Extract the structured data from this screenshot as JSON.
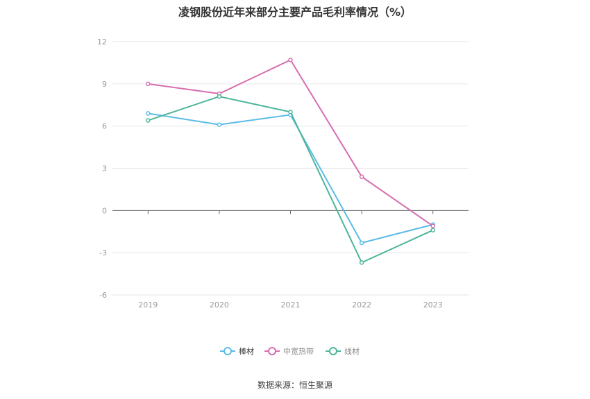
{
  "chart_data": {
    "type": "line",
    "title": "凌钢股份近年来部分主要产品毛利率情况（%）",
    "categories": [
      "2019",
      "2020",
      "2021",
      "2022",
      "2023"
    ],
    "ylim": [
      -6,
      12
    ],
    "yticks": [
      "12",
      "9",
      "6",
      "3",
      "0",
      "-3",
      "-6"
    ],
    "grid": true,
    "legend_position": "bottom",
    "series": [
      {
        "name": "棒材",
        "color": "#5bbbe8",
        "values": [
          6.9,
          6.1,
          6.8,
          -2.3,
          -1.0
        ]
      },
      {
        "name": "中宽热带",
        "color": "#d66db0",
        "values": [
          9.0,
          8.3,
          10.7,
          2.4,
          -1.1
        ]
      },
      {
        "name": "线材",
        "color": "#4cb59a",
        "values": [
          6.4,
          8.1,
          7.0,
          -3.7,
          -1.4
        ]
      }
    ]
  },
  "source": "数据来源：恒生聚源"
}
